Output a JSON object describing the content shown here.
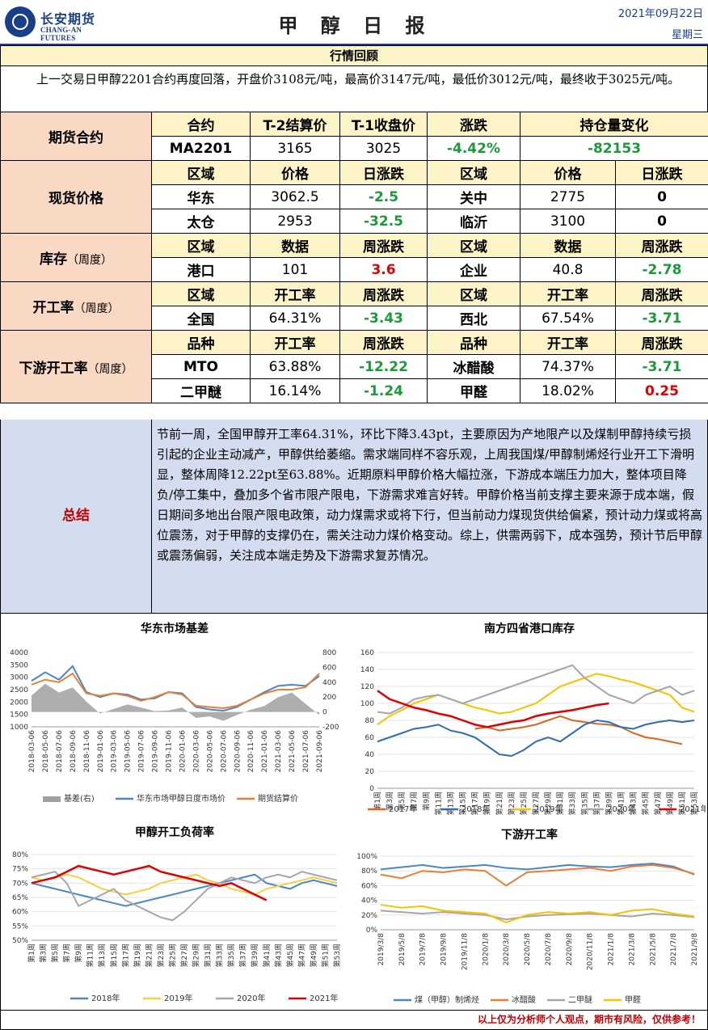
{
  "header": {
    "logo_cn": "长安期货",
    "logo_en": "CHANG-AN FUTURES",
    "title": "甲 醇 日 报",
    "date": "2021年09月22日",
    "weekday": "星期三"
  },
  "section_title": "行情回顾",
  "review_text": "上一交易日甲醇2201合约再度回落，开盘价3108元/吨，最高价3147元/吨，最低价3012元/吨，最终收于3025元/吨。",
  "futures": {
    "label": "期货合约",
    "headers": [
      "合约",
      "T-2结算价",
      "T-1收盘价",
      "涨跌",
      "持仓量变化"
    ],
    "contract": "MA2201",
    "settle_t2": "3165",
    "close_t1": "3025",
    "change": "-4.42%",
    "oi_change": "-82153"
  },
  "spot": {
    "label": "现货价格",
    "headers": [
      "区域",
      "价格",
      "日涨跌",
      "区域",
      "价格",
      "日涨跌"
    ],
    "rows": [
      [
        "华东",
        "3062.5",
        "-2.5",
        "关中",
        "2775",
        "0"
      ],
      [
        "太仓",
        "2953",
        "-32.5",
        "临沂",
        "3100",
        "0"
      ]
    ]
  },
  "inventory": {
    "label": "库存",
    "label_note": "（周度）",
    "headers": [
      "区域",
      "数据",
      "周涨跌",
      "区域",
      "数据",
      "周涨跌"
    ],
    "row": [
      "港口",
      "101",
      "3.6",
      "企业",
      "40.8",
      "-2.78"
    ]
  },
  "operating": {
    "label": "开工率",
    "label_note": "（周度）",
    "headers": [
      "区域",
      "开工率",
      "周涨跌",
      "区域",
      "开工率",
      "周涨跌"
    ],
    "row": [
      "全国",
      "64.31%",
      "-3.43",
      "西北",
      "67.54%",
      "-3.71"
    ]
  },
  "downstream": {
    "label": "下游开工率",
    "label_note": "（周度）",
    "headers": [
      "品种",
      "开工率",
      "周涨跌",
      "品种",
      "开工率",
      "周涨跌"
    ],
    "rows": [
      [
        "MTO",
        "63.88%",
        "-12.22",
        "冰醋酸",
        "74.37%",
        "-3.71"
      ],
      [
        "二甲醚",
        "16.14%",
        "-1.24",
        "甲醛",
        "18.02%",
        "0.25"
      ]
    ]
  },
  "summary": {
    "label": "总结",
    "text": "节前一周，全国甲醇开工率64.31%，环比下降3.43pt，主要原因为产地限产以及煤制甲醇持续亏损引起的企业主动减产，甲醇供给萎缩。需求端同样不容乐观，上周我国煤/甲醇制烯烃行业开工下滑明显，整体周降12.22pt至63.88%。近期原料甲醇价格大幅拉涨，下游成本端压力加大，整体项目降负/停工集中，叠加多个省市限产限电，下游需求难言好转。甲醇价格当前支撑主要来源于成本端，假日期间多地出台限产限电政策，动力煤需求或将下行，但当前动力煤现货供给偏紧，预计动力煤或将高位震荡，对于甲醇的支撑仍在，需关注动力煤价格变动。综上，供需两弱下，成本强势，预计节后甲醇或震荡偏弱，关注成本端走势及下游需求复苏情况。"
  },
  "footer": "以上仅为分析师个人观点，期市有风险，仅供参考！",
  "chart_data": [
    {
      "type": "line",
      "title": "华东市场基差",
      "x": [
        "2018-03-06",
        "2018-05-06",
        "2018-07-06",
        "2018-09-06",
        "2018-11-06",
        "2019-01-06",
        "2019-03-06",
        "2019-05-06",
        "2019-07-06",
        "2019-09-06",
        "2019-11-06",
        "2020-01-06",
        "2020-03-06",
        "2020-05-06",
        "2020-07-06",
        "2020-09-06",
        "2020-11-06",
        "2021-01-06",
        "2021-03-06",
        "2021-05-06",
        "2021-07-06",
        "2021-09-06"
      ],
      "ylim": [
        1000,
        4000
      ],
      "y2lim": [
        -200,
        800
      ],
      "yticks": [
        "4000",
        "3500",
        "3000",
        "2500",
        "2000",
        "1500",
        "1000"
      ],
      "y2ticks": [
        "800",
        "600",
        "400",
        "200",
        "0",
        "-200"
      ],
      "series": [
        {
          "name": "基差(右)",
          "color": "#a0a0a0",
          "type": "area",
          "values": [
            220,
            380,
            260,
            330,
            140,
            -20,
            40,
            100,
            60,
            10,
            20,
            60,
            -80,
            -60,
            -120,
            -40,
            30,
            80,
            200,
            260,
            110,
            -40
          ]
        },
        {
          "name": "华东市场甲醇日度市场价",
          "color": "#4a86c8",
          "values": [
            2850,
            3200,
            2900,
            3450,
            2400,
            2200,
            2350,
            2300,
            2100,
            2150,
            2400,
            2350,
            1800,
            1700,
            1650,
            1800,
            2100,
            2400,
            2650,
            2700,
            2650,
            3050
          ]
        },
        {
          "name": "期货结算价",
          "color": "#ed7d31",
          "values": [
            2700,
            2900,
            2800,
            3150,
            2350,
            2250,
            2350,
            2250,
            2050,
            2200,
            2400,
            2300,
            1850,
            1800,
            1750,
            1850,
            2100,
            2350,
            2500,
            2500,
            2600,
            3150
          ]
        }
      ]
    },
    {
      "type": "line",
      "title": "南方四省港口库存",
      "x": [
        "第1周",
        "第3周",
        "第5周",
        "第7周",
        "第9周",
        "第11周",
        "第13周",
        "第15周",
        "第17周",
        "第19周",
        "第21周",
        "第23周",
        "第25周",
        "第27周",
        "第29周",
        "第31周",
        "第33周",
        "第35周",
        "第37周",
        "第39周",
        "第41周",
        "第43周",
        "第45周",
        "第47周",
        "第49周",
        "第51周",
        "第53周"
      ],
      "ylim": [
        0,
        160
      ],
      "yticks": [
        "160",
        "140",
        "120",
        "100",
        "80",
        "60",
        "40",
        "20",
        "0"
      ],
      "series": [
        {
          "name": "2017年",
          "color": "#d2691e",
          "values": [
            null,
            null,
            null,
            null,
            null,
            null,
            null,
            null,
            70,
            72,
            68,
            70,
            72,
            75,
            80,
            85,
            80,
            78,
            76,
            75,
            72,
            65,
            60,
            58,
            55,
            52,
            null
          ]
        },
        {
          "name": "2018年",
          "color": "#2e6db4",
          "values": [
            55,
            60,
            65,
            70,
            72,
            75,
            68,
            65,
            60,
            50,
            40,
            38,
            45,
            55,
            60,
            55,
            65,
            75,
            80,
            78,
            72,
            70,
            75,
            78,
            80,
            78,
            80
          ]
        },
        {
          "name": "2019年",
          "color": "#f5c400",
          "values": [
            75,
            85,
            92,
            100,
            105,
            110,
            105,
            100,
            95,
            92,
            88,
            90,
            95,
            100,
            110,
            120,
            125,
            130,
            135,
            132,
            128,
            125,
            120,
            115,
            110,
            95,
            90
          ]
        },
        {
          "name": "2020年",
          "color": "#a6a6a6",
          "values": [
            90,
            88,
            95,
            105,
            108,
            110,
            105,
            100,
            105,
            110,
            115,
            120,
            125,
            130,
            135,
            140,
            145,
            130,
            120,
            110,
            105,
            100,
            110,
            115,
            120,
            110,
            115
          ]
        },
        {
          "name": "2021年",
          "color": "#e00000",
          "values": [
            115,
            105,
            100,
            95,
            92,
            88,
            85,
            80,
            75,
            72,
            75,
            78,
            80,
            85,
            88,
            90,
            92,
            95,
            98,
            100,
            null,
            null,
            null,
            null,
            null,
            null,
            null
          ]
        }
      ]
    },
    {
      "type": "line",
      "title": "甲醇开工负荷率",
      "x": [
        "第1周",
        "第3周",
        "第5周",
        "第7周",
        "第9周",
        "第11周",
        "第13周",
        "第15周",
        "第17周",
        "第19周",
        "第21周",
        "第23周",
        "第25周",
        "第27周",
        "第29周",
        "第31周",
        "第33周",
        "第35周",
        "第37周",
        "第39周",
        "第41周",
        "第43周",
        "第45周",
        "第47周",
        "第49周",
        "第51周",
        "第53周"
      ],
      "ylim": [
        50,
        80
      ],
      "yticks": [
        "80%",
        "75%",
        "70%",
        "65%",
        "60%",
        "55%",
        "50%"
      ],
      "series": [
        {
          "name": "2018年",
          "color": "#4a86c8",
          "values": [
            70,
            69,
            68,
            67,
            66,
            65,
            64,
            63,
            62,
            63,
            64,
            65,
            66,
            67,
            68,
            69,
            70,
            71,
            72,
            73,
            70,
            69,
            68,
            70,
            71,
            70,
            69
          ]
        },
        {
          "name": "2019年",
          "color": "#f5d040",
          "values": [
            72,
            71,
            72,
            73,
            72,
            70,
            68,
            67,
            66,
            67,
            68,
            70,
            71,
            72,
            73,
            71,
            70,
            68,
            67,
            66,
            68,
            69,
            70,
            71,
            72,
            71,
            70
          ]
        },
        {
          "name": "2020年",
          "color": "#a6a6a6",
          "values": [
            72,
            73,
            74,
            70,
            62,
            64,
            66,
            68,
            64,
            62,
            60,
            58,
            57,
            60,
            64,
            68,
            70,
            72,
            71,
            70,
            72,
            73,
            72,
            74,
            73,
            72,
            71
          ]
        },
        {
          "name": "2021年",
          "color": "#e00000",
          "values": [
            70,
            71,
            72,
            74,
            76,
            75,
            74,
            73,
            74,
            75,
            76,
            74,
            73,
            72,
            71,
            70,
            69,
            70,
            68,
            66,
            64,
            null,
            null,
            null,
            null,
            null,
            null
          ]
        }
      ]
    },
    {
      "type": "line",
      "title": "下游开工率",
      "x": [
        "2019/3/8",
        "2019/5/8",
        "2019/7/8",
        "2019/9/8",
        "2019/11/8",
        "2020/1/8",
        "2020/3/8",
        "2020/5/8",
        "2020/7/8",
        "2020/9/8",
        "2020/11/8",
        "2021/1/8",
        "2021/3/8",
        "2021/5/8",
        "2021/7/8",
        "2021/9/8"
      ],
      "ylim": [
        0,
        100
      ],
      "yticks": [
        "100%",
        "80%",
        "60%",
        "40%",
        "20%",
        "0%"
      ],
      "series": [
        {
          "name": "煤（甲醇）制烯烃",
          "color": "#4a86c8",
          "values": [
            82,
            85,
            88,
            84,
            86,
            88,
            84,
            82,
            85,
            88,
            86,
            85,
            88,
            90,
            86,
            75
          ]
        },
        {
          "name": "冰醋酸",
          "color": "#ed7d31",
          "values": [
            75,
            70,
            80,
            78,
            82,
            80,
            60,
            78,
            80,
            82,
            84,
            80,
            86,
            88,
            84,
            76
          ]
        },
        {
          "name": "二甲醚",
          "color": "#a6a6a6",
          "values": [
            26,
            24,
            22,
            24,
            22,
            20,
            14,
            18,
            20,
            21,
            22,
            20,
            18,
            22,
            20,
            17
          ]
        },
        {
          "name": "甲醛",
          "color": "#f5c400",
          "values": [
            34,
            30,
            32,
            26,
            24,
            22,
            10,
            20,
            24,
            22,
            24,
            20,
            26,
            28,
            22,
            18
          ]
        }
      ]
    }
  ]
}
